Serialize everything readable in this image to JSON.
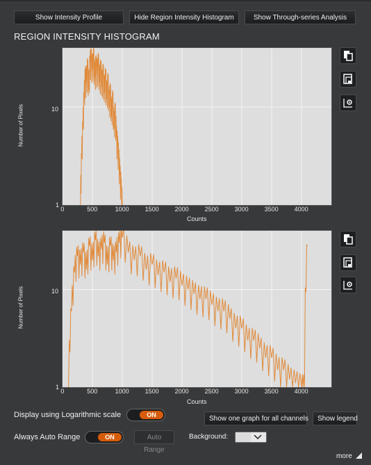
{
  "toolbar": {
    "intensity_profile": "Show Intensity Profile",
    "hide_region_histogram": "Hide Region Intensity Histogram",
    "through_series": "Show Through-series Analysis"
  },
  "section_title": "REGION INTENSITY HISTOGRAM",
  "chart_data": [
    {
      "type": "line",
      "xlabel": "Counts",
      "ylabel": "Number of Pixels",
      "y_scale": "log",
      "xlim": [
        0,
        4500
      ],
      "ylim": [
        1,
        40
      ],
      "x_ticks": [
        "0",
        "500",
        "1000",
        "1500",
        "2000",
        "2500",
        "3000",
        "3500",
        "4000"
      ],
      "y_ticks": [
        "1",
        "10"
      ],
      "grid": true,
      "color": "#e08a3a",
      "x": [
        300,
        320,
        340,
        360,
        380,
        400,
        420,
        440,
        460,
        480,
        500,
        520,
        540,
        560,
        580,
        600,
        620,
        640,
        660,
        680,
        700,
        720,
        740,
        760,
        780,
        800,
        820,
        840,
        860,
        880,
        900,
        920,
        940,
        960,
        980,
        1000
      ],
      "y": [
        1,
        3,
        6,
        12,
        20,
        18,
        25,
        15,
        28,
        30,
        24,
        32,
        20,
        26,
        22,
        28,
        18,
        24,
        16,
        22,
        14,
        20,
        12,
        18,
        10,
        14,
        8,
        12,
        6,
        9,
        5,
        4,
        3,
        2,
        1.5,
        1
      ]
    },
    {
      "type": "line",
      "xlabel": "Counts",
      "ylabel": "Number of Pixels",
      "y_scale": "log",
      "xlim": [
        0,
        4500
      ],
      "ylim": [
        1,
        40
      ],
      "x_ticks": [
        "0",
        "500",
        "1000",
        "1500",
        "2000",
        "2500",
        "3000",
        "3500",
        "4000"
      ],
      "y_ticks": [
        "1",
        "10"
      ],
      "grid": true,
      "color": "#e08a3a",
      "x": [
        100,
        150,
        200,
        250,
        300,
        350,
        400,
        450,
        500,
        550,
        600,
        650,
        700,
        750,
        800,
        850,
        900,
        950,
        1000,
        1100,
        1200,
        1300,
        1400,
        1500,
        1600,
        1700,
        1800,
        1900,
        2000,
        2100,
        2200,
        2300,
        2400,
        2500,
        2600,
        2700,
        2800,
        2900,
        3000,
        3100,
        3200,
        3300,
        3400,
        3500,
        3600,
        3700,
        3800,
        3900,
        4000,
        4050,
        4100
      ],
      "y": [
        1,
        6,
        15,
        22,
        18,
        24,
        16,
        28,
        20,
        32,
        22,
        26,
        30,
        18,
        28,
        20,
        24,
        30,
        34,
        24,
        20,
        22,
        16,
        18,
        14,
        15,
        12,
        13,
        11,
        10,
        9,
        8,
        8,
        7,
        6,
        6,
        5,
        4,
        4,
        3,
        3,
        2.5,
        2,
        2,
        1.5,
        1.5,
        1.2,
        1.1,
        1,
        1,
        28
      ]
    }
  ],
  "controls": {
    "log_scale_label": "Display using Logarithmic scale",
    "log_toggle": "ON",
    "one_graph": "Show one graph for all channels",
    "show_legend": "Show legend",
    "auto_range_label": "Always Auto Range",
    "auto_toggle": "ON",
    "auto_range_btn": "Auto Range",
    "background_label": "Background:"
  },
  "footer": {
    "more": "more"
  },
  "icons": {
    "copy": "copy-icon",
    "save": "save-icon",
    "settings": "export-settings-icon"
  }
}
